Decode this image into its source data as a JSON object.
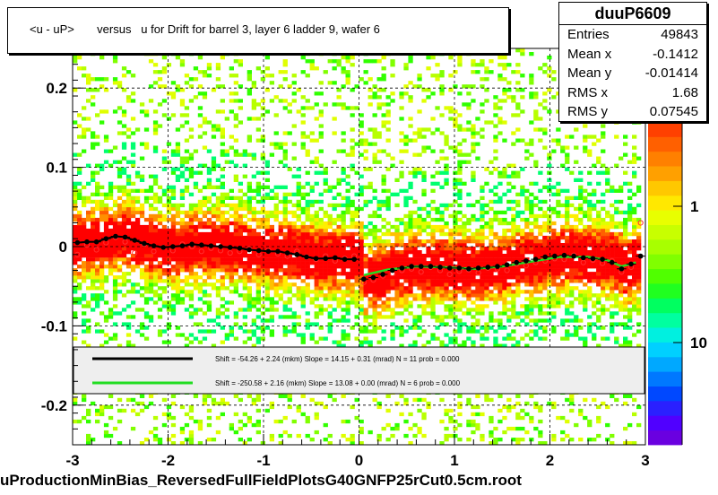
{
  "title": "<u - uP>       versus   u for Drift for barrel 3, layer 6 ladder 9, wafer 6",
  "stats": {
    "name": "duuP6609",
    "rows": [
      {
        "label": "Entries",
        "value": "49843"
      },
      {
        "label": "Mean x",
        "value": "-0.1412"
      },
      {
        "label": "Mean y",
        "value": "-0.01414"
      },
      {
        "label": "RMS x",
        "value": "1.68"
      },
      {
        "label": "RMS y",
        "value": "0.07545"
      }
    ]
  },
  "filename": "uProductionMinBias_ReversedFullFieldPlotsG40GNFP25rCut0.5cm.root",
  "fit_legend": [
    {
      "color": "#000000",
      "text": "Shift =   -54.26 + 2.24 (mkm) Slope =    14.15 + 0.31 (mrad)  N = 11 prob = 0.000"
    },
    {
      "color": "#22dd22",
      "text": "Shift =  -250.58 + 2.16 (mkm) Slope =    13.08 + 0.00 (mrad)  N = 6 prob = 0.000"
    }
  ],
  "chart_data": {
    "type": "heatmap",
    "title": "<u - uP>       versus   u for Drift for barrel 3, layer 6 ladder 9, wafer 6",
    "xlim": [
      -3,
      3
    ],
    "ylim": [
      -0.25,
      0.25
    ],
    "x_ticks": [
      -3,
      -2,
      -1,
      0,
      1,
      2,
      3
    ],
    "x_tick_labels": [
      "-3",
      "-2",
      "-1",
      "0",
      "1",
      "2",
      "3"
    ],
    "y_ticks": [
      -0.2,
      -0.1,
      0,
      0.1,
      0.2
    ],
    "y_tick_labels": [
      "-0.2",
      "-0.1",
      "0",
      "0.1",
      "0.2"
    ],
    "z_scale": "log",
    "z_tick_labels": [
      "1",
      "10"
    ],
    "grid": true,
    "profile_black": {
      "x": [
        -2.95,
        -2.85,
        -2.75,
        -2.65,
        -2.55,
        -2.45,
        -2.35,
        -2.25,
        -2.15,
        -2.05,
        -1.95,
        -1.85,
        -1.75,
        -1.65,
        -1.55,
        -1.45,
        -1.35,
        -1.25,
        -1.15,
        -1.05,
        -0.95,
        -0.85,
        -0.75,
        -0.65,
        -0.55,
        -0.45,
        -0.35,
        -0.25,
        -0.15,
        -0.05,
        0.05,
        0.15,
        0.25,
        0.35,
        0.45,
        0.55,
        0.65,
        0.75,
        0.85,
        0.95,
        1.05,
        1.15,
        1.25,
        1.35,
        1.45,
        1.55,
        1.65,
        1.75,
        1.85,
        1.95,
        2.05,
        2.15,
        2.25,
        2.35,
        2.45,
        2.55,
        2.65,
        2.75,
        2.85,
        2.95
      ],
      "y": [
        0.005,
        0.006,
        0.006,
        0.01,
        0.013,
        0.012,
        0.008,
        0.004,
        0.001,
        -0.001,
        0.0,
        0.001,
        0.003,
        0.002,
        0.001,
        0.0,
        -0.001,
        -0.002,
        -0.004,
        -0.005,
        -0.006,
        -0.006,
        -0.008,
        -0.01,
        -0.013,
        -0.015,
        -0.015,
        -0.014,
        -0.016,
        -0.016,
        -0.041,
        -0.039,
        -0.035,
        -0.03,
        -0.027,
        -0.025,
        -0.025,
        -0.025,
        -0.026,
        -0.027,
        -0.027,
        -0.028,
        -0.027,
        -0.026,
        -0.025,
        -0.023,
        -0.02,
        -0.018,
        -0.016,
        -0.013,
        -0.012,
        -0.011,
        -0.012,
        -0.014,
        -0.015,
        -0.016,
        -0.02,
        -0.028,
        -0.022,
        -0.012
      ]
    },
    "profile_red": {
      "x": [
        -2.95,
        -2.85,
        -2.75,
        -2.65,
        -2.55,
        -2.45,
        -2.35,
        -2.25,
        -2.15,
        -2.05,
        -1.95,
        -1.85,
        -1.75,
        -1.65,
        -1.55,
        -1.45,
        -1.35,
        -1.25,
        -1.15,
        -1.05,
        -0.95,
        -0.85,
        -0.75,
        -0.65,
        -0.55,
        -0.45,
        -0.35,
        -0.25,
        -0.15,
        -0.05,
        0.05,
        0.15,
        0.25,
        0.35,
        0.45,
        0.55,
        0.65,
        0.75,
        0.85,
        0.95,
        1.05,
        1.15,
        1.25,
        1.35,
        1.45,
        1.55,
        1.65,
        1.75,
        1.85,
        1.95,
        2.05,
        2.15,
        2.25,
        2.35,
        2.45,
        2.55,
        2.65,
        2.75,
        2.85,
        2.95
      ],
      "y": [
        -0.01,
        0.002,
        -0.004,
        0.005,
        0.012,
        0.006,
        -0.008,
        0.003,
        -0.006,
        -0.001,
        -0.005,
        0.003,
        0.0,
        -0.006,
        -0.002,
        -0.005,
        -0.008,
        -0.006,
        -0.003,
        -0.01,
        -0.005,
        -0.009,
        -0.012,
        -0.006,
        -0.013,
        -0.016,
        -0.012,
        -0.018,
        -0.015,
        -0.012,
        -0.045,
        -0.042,
        -0.037,
        -0.034,
        -0.03,
        -0.028,
        -0.032,
        -0.026,
        -0.03,
        -0.035,
        -0.031,
        -0.029,
        -0.033,
        -0.027,
        -0.028,
        -0.03,
        -0.022,
        -0.024,
        -0.02,
        -0.018,
        -0.015,
        -0.016,
        -0.011,
        -0.02,
        -0.017,
        -0.021,
        -0.018,
        -0.032,
        -0.026,
        0.03
      ]
    },
    "fit_green": {
      "x": [
        0.05,
        0.3,
        0.6,
        0.9,
        1.2,
        1.5,
        1.8,
        2.1,
        2.4,
        2.6,
        2.75,
        2.9
      ],
      "y": [
        -0.036,
        -0.029,
        -0.025,
        -0.026,
        -0.028,
        -0.025,
        -0.019,
        -0.013,
        -0.013,
        -0.017,
        -0.025,
        -0.02
      ]
    }
  }
}
